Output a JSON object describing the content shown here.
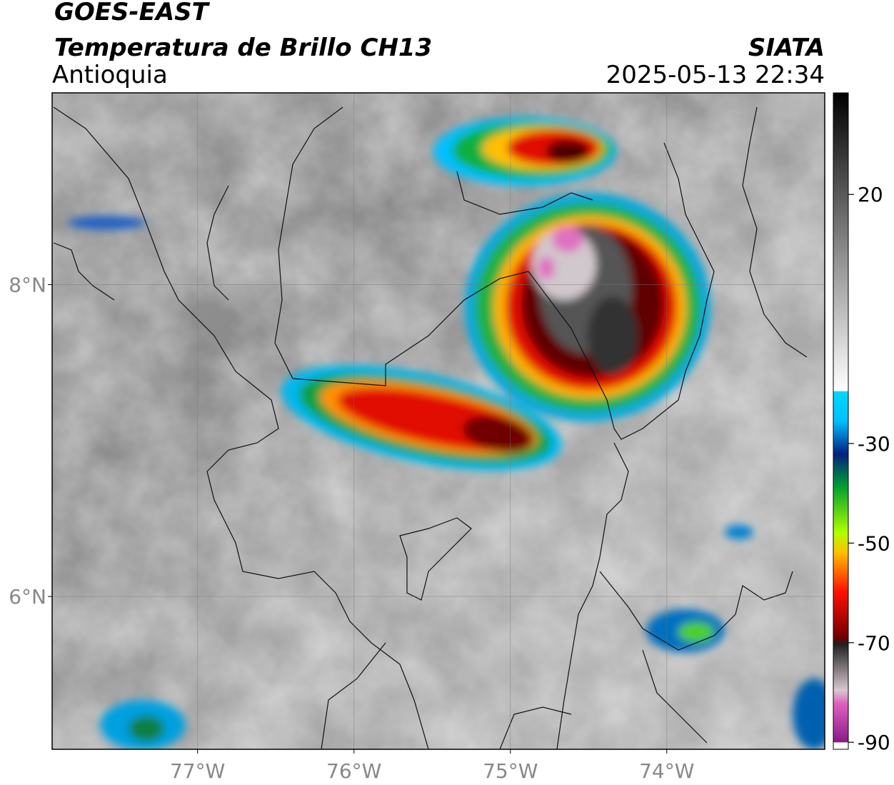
{
  "header": {
    "title": "GOES-EAST",
    "subtitle": "Temperatura de Brillo CH13",
    "region": "Antioquia",
    "source": "SIATA",
    "datetime": "2025-05-13 22:34"
  },
  "map": {
    "lon_lim": [
      -77.93,
      -72.99
    ],
    "lat_lim": [
      5.02,
      9.23
    ],
    "lon_ticks": [
      {
        "value": -77,
        "label": "77°W"
      },
      {
        "value": -76,
        "label": "76°W"
      },
      {
        "value": -75,
        "label": "75°W"
      },
      {
        "value": -74,
        "label": "74°W"
      }
    ],
    "lat_ticks": [
      {
        "value": 8,
        "label": "8°N"
      },
      {
        "value": 6,
        "label": "6°N"
      }
    ]
  },
  "colorbar": {
    "lim": [
      -91.4,
      40.4
    ],
    "ticks": [
      20,
      -30,
      -50,
      -70,
      -90
    ]
  }
}
